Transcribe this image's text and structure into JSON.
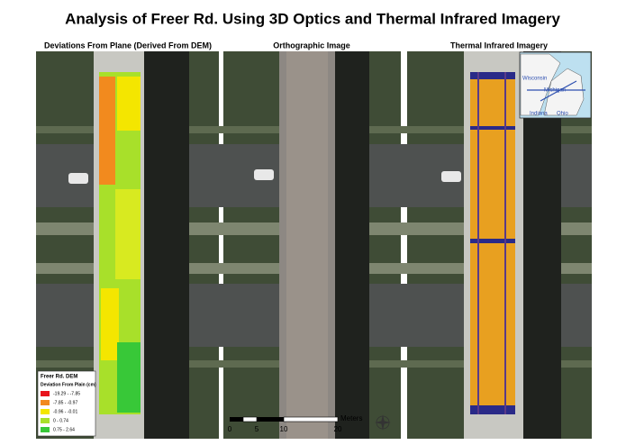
{
  "header": {
    "title": "Analysis of Freer Rd. Using 3D Optics and Thermal Infrared Imagery"
  },
  "panels": [
    {
      "title": "Deviations From Plane (Derived From DEM)"
    },
    {
      "title": "Orthographic Image"
    },
    {
      "title": "Thermal Infrared Imagery"
    }
  ],
  "legend": {
    "title": "Freer Rd. DEM",
    "subtitle": "Deviation From Plain (cm)",
    "items": [
      {
        "label": "-19.29 - -7.85",
        "color": "#e8141c"
      },
      {
        "label": "-7.85 - -0.97",
        "color": "#f28a1e"
      },
      {
        "label": "-0.96 - -0.01",
        "color": "#f4e600"
      },
      {
        "label": "0 - 0.74",
        "color": "#a8e02a"
      },
      {
        "label": "0.75 - 2.64",
        "color": "#38c838"
      }
    ]
  },
  "scale_bar": {
    "labels": [
      "0",
      "5",
      "10",
      "20"
    ],
    "unit": "Meters"
  },
  "inset_map": {
    "labels": [
      "Wisconsin",
      "Michigan",
      "Indiana",
      "Ohio"
    ]
  }
}
